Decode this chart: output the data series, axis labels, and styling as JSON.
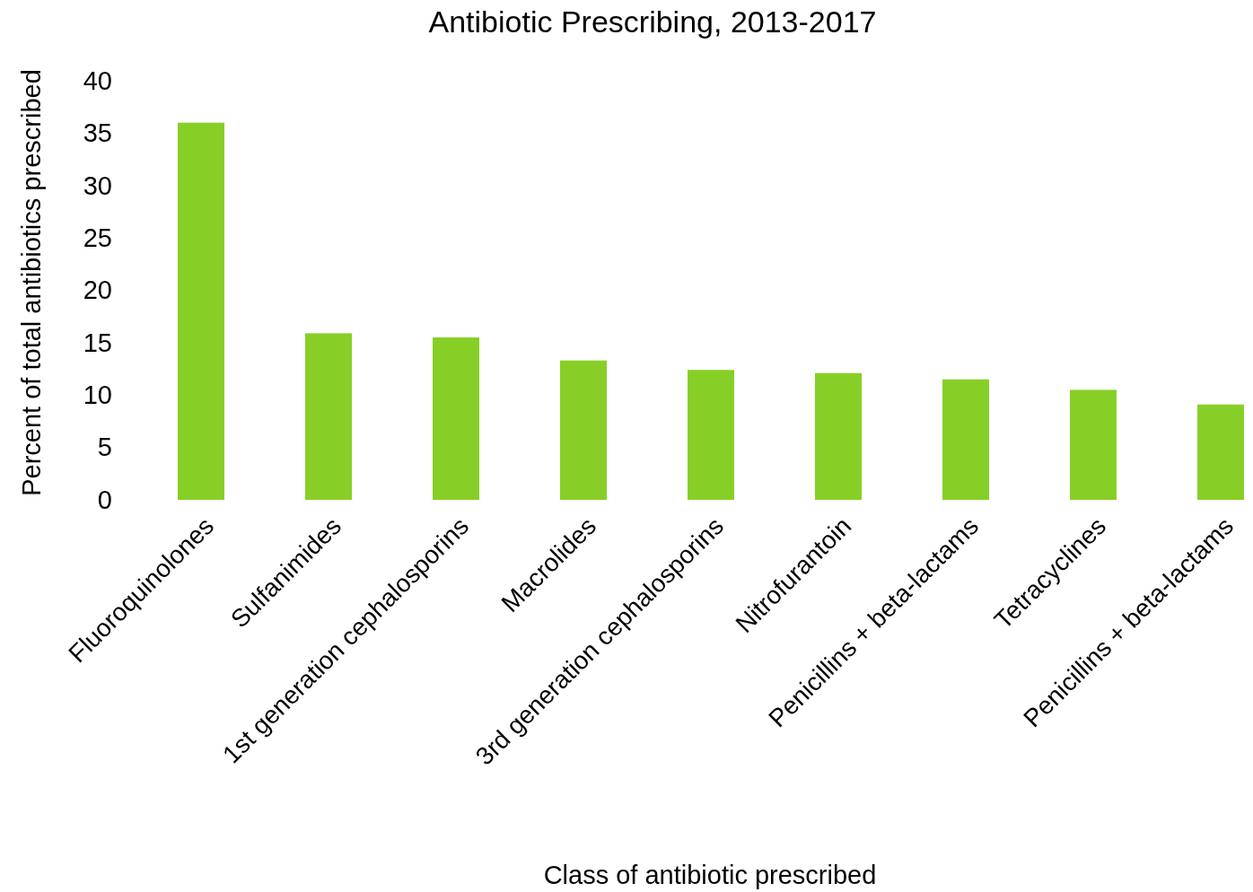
{
  "chart_data": {
    "type": "bar",
    "title": "Antibiotic Prescribing, 2013-2017",
    "xlabel": "Class of antibiotic prescribed",
    "ylabel": "Percent of total antibiotics prescribed",
    "categories": [
      "Fluoroquinolones",
      "Sulfanimides",
      "1st generation cephalosporins",
      "Macrolides",
      "3rd generation cephalosporins",
      "Nitrofurantoin",
      "Penicillins + beta-lactams",
      "Tetracyclines",
      "Penicillins + beta-lactams"
    ],
    "values": [
      36,
      15.9,
      15.5,
      13.3,
      12.4,
      12.1,
      11.5,
      10.5,
      9.1
    ],
    "color": "#87cf27",
    "ylim": [
      0,
      40
    ],
    "yticks": [
      0,
      5,
      10,
      15,
      20,
      25,
      30,
      35,
      40
    ]
  }
}
